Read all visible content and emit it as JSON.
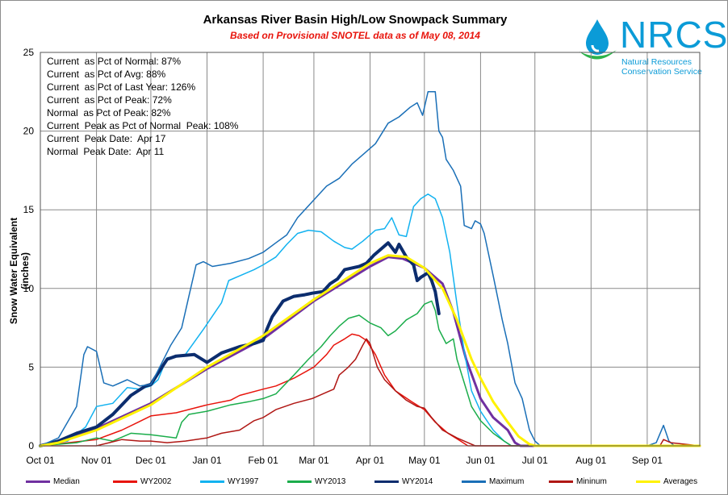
{
  "chart_data": {
    "type": "line",
    "title": "Arkansas River Basin High/Low Snowpack Summary",
    "subtitle": "Based on Provisional SNOTEL data as of May 08, 2014",
    "ylabel": "Snow Water Equivalent (inches)",
    "xlabel": "",
    "ylim": [
      0,
      25
    ],
    "y_ticks": [
      "0",
      "5",
      "10",
      "15",
      "20",
      "25"
    ],
    "x_ticks": [
      "Oct 01",
      "Nov 01",
      "Dec 01",
      "Jan 01",
      "Feb 01",
      "Mar 01",
      "Apr 01",
      "May 01",
      "Jun 01",
      "Jul 01",
      "Aug 01",
      "Sep 01"
    ],
    "x_tick_days": [
      0,
      31,
      61,
      92,
      123,
      151,
      182,
      212,
      243,
      273,
      304,
      335
    ],
    "x_max_day": 364,
    "grid": true,
    "legend_position": "bottom",
    "stats": [
      "Current  as Pct of Normal: 87%",
      "Current  as Pct of Avg: 88%",
      "Current  as Pct of Last Year: 126%",
      "Current  as Pct of Peak: 72%",
      "Normal  as Pct of Peak: 82%",
      "Current  Peak as Pct of Normal  Peak: 108%",
      "Current  Peak Date:  Apr 17",
      "Normal  Peak Date:  Apr 11"
    ],
    "series": [
      {
        "name": "Median",
        "color": "#7030a0",
        "width": 3,
        "points": [
          [
            0,
            0
          ],
          [
            10,
            0.2
          ],
          [
            31,
            1.1
          ],
          [
            61,
            2.7
          ],
          [
            92,
            4.9
          ],
          [
            123,
            6.8
          ],
          [
            151,
            9.2
          ],
          [
            182,
            11.4
          ],
          [
            192,
            12.0
          ],
          [
            200,
            11.9
          ],
          [
            212,
            11.3
          ],
          [
            222,
            10.3
          ],
          [
            228,
            8.5
          ],
          [
            235,
            5.5
          ],
          [
            243,
            3.0
          ],
          [
            250,
            1.8
          ],
          [
            258,
            1.0
          ],
          [
            262,
            0.2
          ],
          [
            265,
            0
          ],
          [
            364,
            0
          ]
        ]
      },
      {
        "name": "WY2002",
        "color": "#e8140c",
        "width": 1.5,
        "points": [
          [
            0,
            0
          ],
          [
            31,
            0.4
          ],
          [
            45,
            1.0
          ],
          [
            54,
            1.5
          ],
          [
            61,
            1.9
          ],
          [
            75,
            2.1
          ],
          [
            92,
            2.6
          ],
          [
            105,
            2.9
          ],
          [
            110,
            3.2
          ],
          [
            123,
            3.6
          ],
          [
            130,
            3.8
          ],
          [
            140,
            4.3
          ],
          [
            151,
            5.0
          ],
          [
            158,
            5.8
          ],
          [
            162,
            6.4
          ],
          [
            168,
            6.8
          ],
          [
            172,
            7.1
          ],
          [
            176,
            7.0
          ],
          [
            180,
            6.7
          ],
          [
            185,
            5.8
          ],
          [
            190,
            4.5
          ],
          [
            196,
            3.5
          ],
          [
            205,
            2.8
          ],
          [
            212,
            2.3
          ],
          [
            218,
            1.5
          ],
          [
            225,
            0.8
          ],
          [
            232,
            0.3
          ],
          [
            236,
            0
          ],
          [
            364,
            0
          ]
        ]
      },
      {
        "name": "WY1997",
        "color": "#12b2f0",
        "width": 1.5,
        "points": [
          [
            0,
            0
          ],
          [
            15,
            0.3
          ],
          [
            25,
            1.2
          ],
          [
            31,
            2.5
          ],
          [
            40,
            2.7
          ],
          [
            48,
            3.7
          ],
          [
            55,
            3.6
          ],
          [
            61,
            3.8
          ],
          [
            65,
            4.2
          ],
          [
            70,
            5.6
          ],
          [
            80,
            5.8
          ],
          [
            85,
            6.6
          ],
          [
            90,
            7.4
          ],
          [
            100,
            9.1
          ],
          [
            104,
            10.5
          ],
          [
            110,
            10.8
          ],
          [
            118,
            11.2
          ],
          [
            123,
            11.5
          ],
          [
            130,
            12.0
          ],
          [
            136,
            12.8
          ],
          [
            142,
            13.5
          ],
          [
            148,
            13.7
          ],
          [
            155,
            13.6
          ],
          [
            162,
            13.0
          ],
          [
            168,
            12.6
          ],
          [
            172,
            12.5
          ],
          [
            178,
            13.0
          ],
          [
            185,
            13.7
          ],
          [
            190,
            13.8
          ],
          [
            194,
            14.5
          ],
          [
            198,
            13.4
          ],
          [
            202,
            13.3
          ],
          [
            206,
            15.2
          ],
          [
            210,
            15.7
          ],
          [
            214,
            16.0
          ],
          [
            218,
            15.7
          ],
          [
            222,
            14.5
          ],
          [
            226,
            12.3
          ],
          [
            230,
            9.0
          ],
          [
            234,
            6.0
          ],
          [
            238,
            3.5
          ],
          [
            243,
            2.2
          ],
          [
            250,
            1.0
          ],
          [
            256,
            0.3
          ],
          [
            260,
            0
          ],
          [
            364,
            0
          ]
        ]
      },
      {
        "name": "WY2013",
        "color": "#1bad4b",
        "width": 1.5,
        "points": [
          [
            0,
            0
          ],
          [
            20,
            0.2
          ],
          [
            31,
            0.5
          ],
          [
            40,
            0.3
          ],
          [
            50,
            0.8
          ],
          [
            61,
            0.7
          ],
          [
            75,
            0.5
          ],
          [
            78,
            1.5
          ],
          [
            82,
            2.0
          ],
          [
            92,
            2.2
          ],
          [
            105,
            2.6
          ],
          [
            115,
            2.8
          ],
          [
            123,
            3.0
          ],
          [
            130,
            3.3
          ],
          [
            140,
            4.5
          ],
          [
            148,
            5.5
          ],
          [
            155,
            6.3
          ],
          [
            160,
            7.0
          ],
          [
            165,
            7.6
          ],
          [
            170,
            8.1
          ],
          [
            176,
            8.3
          ],
          [
            182,
            7.8
          ],
          [
            188,
            7.5
          ],
          [
            192,
            7.0
          ],
          [
            196,
            7.3
          ],
          [
            202,
            8.0
          ],
          [
            208,
            8.4
          ],
          [
            212,
            9.0
          ],
          [
            216,
            9.2
          ],
          [
            218,
            8.6
          ],
          [
            220,
            7.4
          ],
          [
            224,
            6.5
          ],
          [
            228,
            6.8
          ],
          [
            230,
            5.5
          ],
          [
            234,
            4.0
          ],
          [
            238,
            2.5
          ],
          [
            243,
            1.6
          ],
          [
            250,
            0.8
          ],
          [
            256,
            0.3
          ],
          [
            260,
            0
          ],
          [
            364,
            0
          ]
        ]
      },
      {
        "name": "WY2014",
        "color": "#0c2d6e",
        "width": 4,
        "points": [
          [
            0,
            0
          ],
          [
            10,
            0.3
          ],
          [
            20,
            0.8
          ],
          [
            31,
            1.2
          ],
          [
            40,
            2.0
          ],
          [
            50,
            3.2
          ],
          [
            58,
            3.8
          ],
          [
            61,
            3.9
          ],
          [
            66,
            4.8
          ],
          [
            70,
            5.5
          ],
          [
            75,
            5.7
          ],
          [
            85,
            5.8
          ],
          [
            92,
            5.3
          ],
          [
            100,
            5.9
          ],
          [
            110,
            6.3
          ],
          [
            118,
            6.5
          ],
          [
            123,
            6.7
          ],
          [
            125,
            7.4
          ],
          [
            128,
            8.2
          ],
          [
            134,
            9.2
          ],
          [
            140,
            9.5
          ],
          [
            146,
            9.6
          ],
          [
            150,
            9.7
          ],
          [
            156,
            9.8
          ],
          [
            160,
            10.3
          ],
          [
            164,
            10.6
          ],
          [
            168,
            11.2
          ],
          [
            172,
            11.3
          ],
          [
            176,
            11.4
          ],
          [
            180,
            11.6
          ],
          [
            184,
            12.1
          ],
          [
            188,
            12.5
          ],
          [
            192,
            12.9
          ],
          [
            194,
            12.6
          ],
          [
            196,
            12.3
          ],
          [
            198,
            12.8
          ],
          [
            202,
            12.0
          ],
          [
            206,
            11.5
          ],
          [
            208,
            10.5
          ],
          [
            210,
            10.7
          ],
          [
            214,
            11.0
          ],
          [
            216,
            10.5
          ],
          [
            218,
            9.8
          ],
          [
            220,
            8.4
          ]
        ]
      },
      {
        "name": "Maximum",
        "color": "#1a6fb7",
        "width": 1.5,
        "points": [
          [
            0,
            0
          ],
          [
            10,
            0.5
          ],
          [
            20,
            2.5
          ],
          [
            24,
            5.8
          ],
          [
            26,
            6.3
          ],
          [
            31,
            6.0
          ],
          [
            35,
            4.0
          ],
          [
            40,
            3.8
          ],
          [
            48,
            4.2
          ],
          [
            55,
            3.8
          ],
          [
            61,
            3.9
          ],
          [
            65,
            4.8
          ],
          [
            72,
            6.4
          ],
          [
            78,
            7.5
          ],
          [
            82,
            9.5
          ],
          [
            86,
            11.5
          ],
          [
            90,
            11.7
          ],
          [
            95,
            11.4
          ],
          [
            105,
            11.6
          ],
          [
            115,
            11.9
          ],
          [
            123,
            12.3
          ],
          [
            130,
            12.9
          ],
          [
            136,
            13.4
          ],
          [
            142,
            14.5
          ],
          [
            150,
            15.5
          ],
          [
            158,
            16.5
          ],
          [
            165,
            17.0
          ],
          [
            172,
            17.9
          ],
          [
            178,
            18.5
          ],
          [
            185,
            19.2
          ],
          [
            192,
            20.5
          ],
          [
            198,
            20.9
          ],
          [
            204,
            21.5
          ],
          [
            208,
            21.8
          ],
          [
            211,
            21.0
          ],
          [
            214,
            22.5
          ],
          [
            218,
            22.5
          ],
          [
            220,
            20.0
          ],
          [
            222,
            19.6
          ],
          [
            224,
            18.2
          ],
          [
            228,
            17.5
          ],
          [
            232,
            16.5
          ],
          [
            234,
            14.0
          ],
          [
            238,
            13.8
          ],
          [
            240,
            14.3
          ],
          [
            243,
            14.1
          ],
          [
            245,
            13.5
          ],
          [
            250,
            10.8
          ],
          [
            255,
            8.0
          ],
          [
            258,
            6.5
          ],
          [
            262,
            4.0
          ],
          [
            266,
            3.0
          ],
          [
            270,
            1.0
          ],
          [
            273,
            0.3
          ],
          [
            276,
            0
          ],
          [
            335,
            0
          ],
          [
            340,
            0.2
          ],
          [
            344,
            1.3
          ],
          [
            347,
            0.3
          ],
          [
            350,
            0
          ],
          [
            364,
            0
          ]
        ]
      },
      {
        "name": "Mininum",
        "color": "#b01714",
        "width": 1.5,
        "points": [
          [
            0,
            0
          ],
          [
            31,
            0
          ],
          [
            38,
            0.2
          ],
          [
            45,
            0.4
          ],
          [
            55,
            0.3
          ],
          [
            61,
            0.3
          ],
          [
            70,
            0.2
          ],
          [
            80,
            0.3
          ],
          [
            92,
            0.5
          ],
          [
            100,
            0.8
          ],
          [
            110,
            1.0
          ],
          [
            118,
            1.6
          ],
          [
            123,
            1.8
          ],
          [
            130,
            2.3
          ],
          [
            140,
            2.7
          ],
          [
            150,
            3.0
          ],
          [
            158,
            3.4
          ],
          [
            162,
            3.6
          ],
          [
            165,
            4.5
          ],
          [
            170,
            5.0
          ],
          [
            174,
            5.5
          ],
          [
            178,
            6.4
          ],
          [
            180,
            6.8
          ],
          [
            182,
            6.5
          ],
          [
            186,
            5.0
          ],
          [
            190,
            4.2
          ],
          [
            196,
            3.5
          ],
          [
            202,
            2.9
          ],
          [
            208,
            2.5
          ],
          [
            212,
            2.4
          ],
          [
            216,
            1.8
          ],
          [
            222,
            1.0
          ],
          [
            230,
            0.5
          ],
          [
            236,
            0.2
          ],
          [
            240,
            0
          ],
          [
            342,
            0
          ],
          [
            344,
            0.4
          ],
          [
            348,
            0.2
          ],
          [
            364,
            0
          ]
        ]
      },
      {
        "name": "Averages",
        "color": "#fff200",
        "width": 3,
        "points": [
          [
            0,
            0
          ],
          [
            10,
            0.2
          ],
          [
            31,
            1.0
          ],
          [
            61,
            2.6
          ],
          [
            92,
            5.0
          ],
          [
            123,
            7.0
          ],
          [
            151,
            9.3
          ],
          [
            182,
            11.6
          ],
          [
            192,
            12.1
          ],
          [
            202,
            12.0
          ],
          [
            212,
            11.3
          ],
          [
            222,
            10.0
          ],
          [
            230,
            8.0
          ],
          [
            238,
            5.5
          ],
          [
            243,
            4.3
          ],
          [
            250,
            2.8
          ],
          [
            258,
            1.5
          ],
          [
            264,
            0.6
          ],
          [
            270,
            0.1
          ],
          [
            273,
            0
          ],
          [
            364,
            0
          ]
        ]
      }
    ]
  },
  "logo": {
    "text": "NRCS",
    "line1": "Natural Resources",
    "line2": "Conservation Service",
    "colors": {
      "text": "#0b9bd7",
      "drop": "#0b9bd7",
      "swoosh": "#2db34a"
    }
  }
}
